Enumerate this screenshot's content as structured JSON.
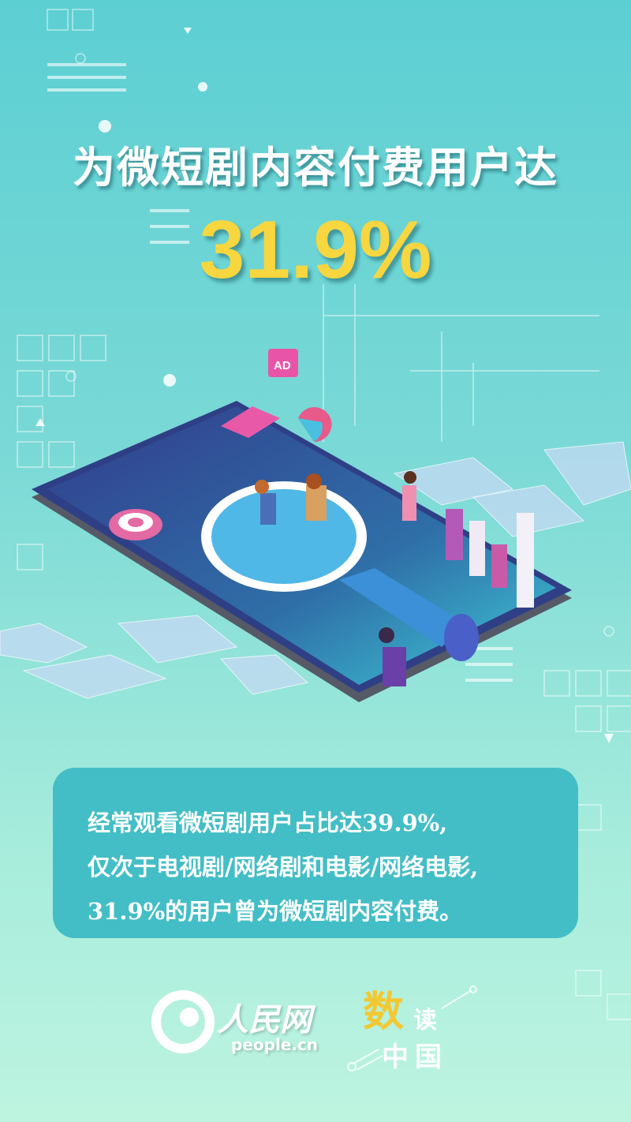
{
  "headline": {
    "title": "为微短剧内容付费用户达",
    "value": "31.9%"
  },
  "illustration": {
    "badge": "AD"
  },
  "summary": {
    "lines": [
      "经常观看微短剧用户占比达39.9%,",
      "仅次于电视剧/网络剧和电影/网络电影,",
      "31.9%的用户曾为微短剧内容付费。"
    ]
  },
  "footer": {
    "logo_name": "人民网",
    "logo_url": "people.cn",
    "brand_shu": "数",
    "brand_du": "读",
    "brand_zg": "中国"
  },
  "colors": {
    "accent_yellow": "#f7d640",
    "card": "#43bec6",
    "phone": "#2f3f86"
  }
}
